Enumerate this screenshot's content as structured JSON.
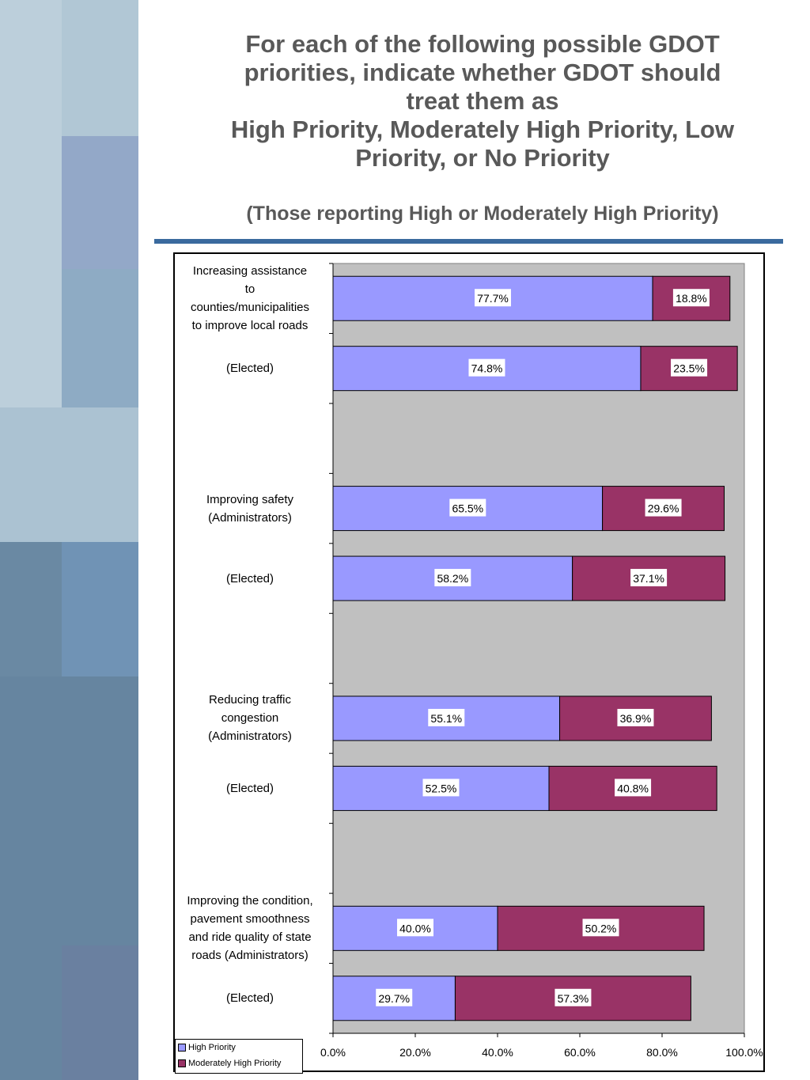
{
  "title_lines": [
    "For each of the following possible GDOT",
    "priorities, indicate whether GDOT should",
    "treat them as",
    "High Priority, Moderately High Priority, Low",
    "Priority, or No Priority"
  ],
  "subtitle": "(Those reporting High or Moderately High Priority)",
  "colors": {
    "high": "#9999ff",
    "moderate": "#993366",
    "plot_bg": "#c0c0c0",
    "rule": "#3a6a9e"
  },
  "chart_data": {
    "type": "bar",
    "orientation": "horizontal",
    "stacked": true,
    "xlim": [
      0,
      100
    ],
    "x_ticks": [
      "0.0%",
      "20.0%",
      "40.0%",
      "60.0%",
      "80.0%",
      "100.0%"
    ],
    "categories": [
      "Increasing assistance to counties/municipalities to improve local roads",
      "(Elected)",
      "",
      "Improving safety (Administrators)",
      "(Elected)",
      "",
      "Reducing traffic congestion (Administrators)",
      "(Elected)",
      "",
      "Improving the condition, pavement smoothness and ride quality of state roads (Administrators)",
      "(Elected)"
    ],
    "category_lines": [
      [
        "Increasing assistance",
        "to",
        "counties/municipalities",
        "to improve local roads"
      ],
      [
        "(Elected)"
      ],
      [],
      [
        "Improving safety",
        "(Administrators)"
      ],
      [
        "(Elected)"
      ],
      [],
      [
        "Reducing traffic",
        "congestion",
        "(Administrators)"
      ],
      [
        "(Elected)"
      ],
      [],
      [
        "Improving the condition,",
        "pavement smoothness",
        "and ride quality of state",
        "roads (Administrators)"
      ],
      [
        "(Elected)"
      ]
    ],
    "series": [
      {
        "name": "High Priority",
        "values": [
          77.7,
          74.8,
          null,
          65.5,
          58.2,
          null,
          55.1,
          52.5,
          null,
          40.0,
          29.7
        ]
      },
      {
        "name": "Moderately High Priority",
        "values": [
          18.8,
          23.5,
          null,
          29.6,
          37.1,
          null,
          36.9,
          40.8,
          null,
          50.2,
          57.3
        ]
      }
    ],
    "legend_position": "bottom-left",
    "grid": false
  }
}
